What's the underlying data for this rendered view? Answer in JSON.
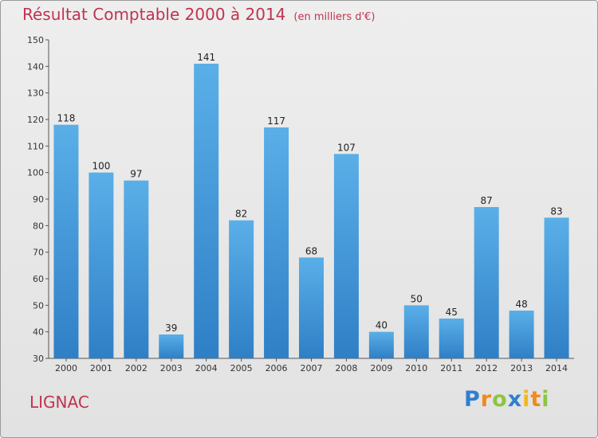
{
  "title": "Résultat Comptable 2000 à 2014",
  "unit": "(en milliers d'€)",
  "commune": "LIGNAC",
  "logo": {
    "letters": [
      {
        "ch": "P",
        "color": "#2f7fd0"
      },
      {
        "ch": "r",
        "color": "#f08a1c"
      },
      {
        "ch": "o",
        "color": "#8cc63f"
      },
      {
        "ch": "x",
        "color": "#2f7fd0"
      },
      {
        "ch": "i",
        "color": "#f0b81c"
      },
      {
        "ch": "t",
        "color": "#f08a1c"
      },
      {
        "ch": "i",
        "color": "#8cc63f"
      }
    ]
  },
  "colors": {
    "bar_light": "#5aafe8",
    "bar_dark": "#2f7fc6",
    "title": "#c0334f"
  },
  "chart_data": {
    "type": "bar",
    "categories": [
      "2000",
      "2001",
      "2002",
      "2003",
      "2004",
      "2005",
      "2006",
      "2007",
      "2008",
      "2009",
      "2010",
      "2011",
      "2012",
      "2013",
      "2014"
    ],
    "values": [
      118,
      100,
      97,
      39,
      141,
      82,
      117,
      68,
      107,
      40,
      50,
      45,
      87,
      48,
      83
    ],
    "yticks": [
      30,
      40,
      50,
      60,
      70,
      80,
      90,
      100,
      110,
      120,
      130,
      140,
      150
    ],
    "ylim": [
      30,
      150
    ],
    "grid": false
  }
}
